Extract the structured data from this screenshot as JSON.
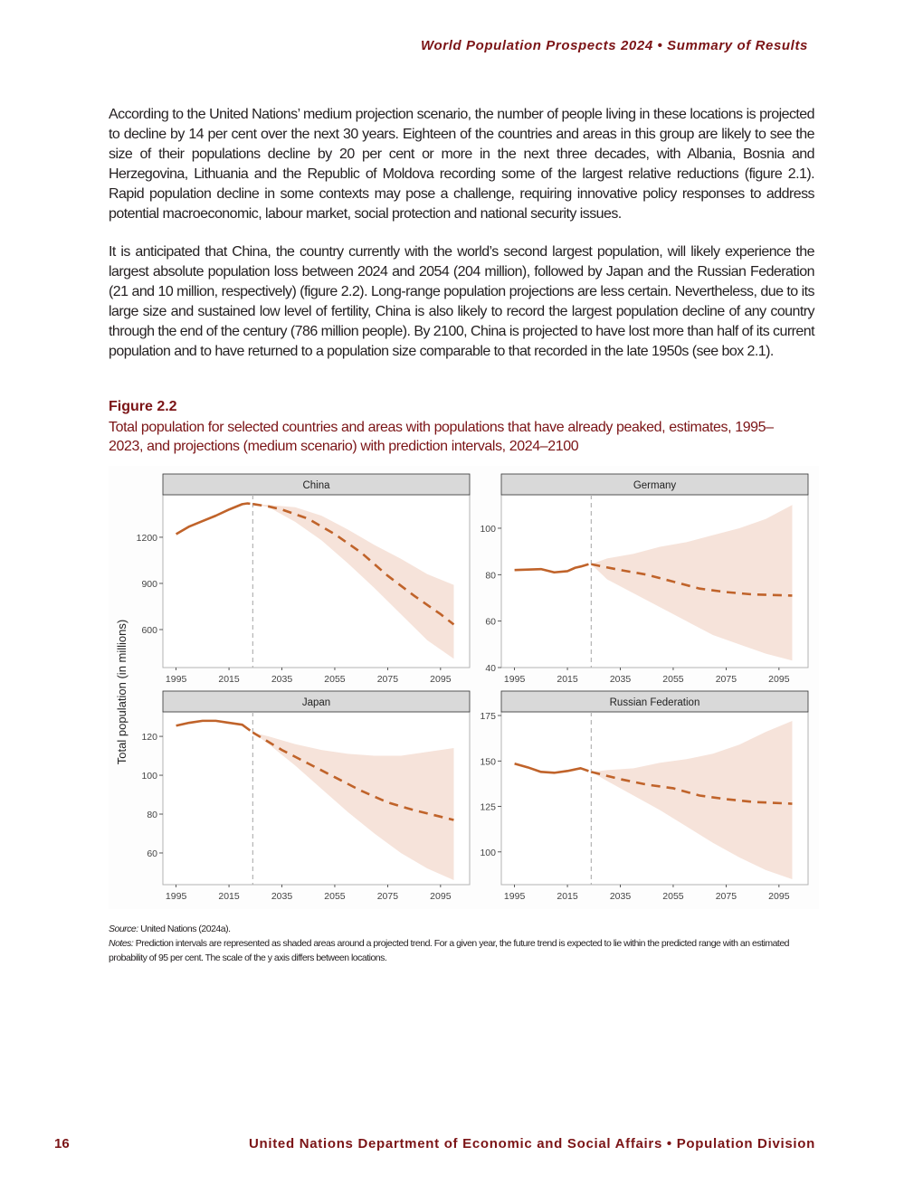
{
  "header": {
    "running_title": "World Population Prospects 2024 • Summary of Results"
  },
  "body": {
    "paragraphs": [
      "According to the United Nations’ medium projection scenario, the number of people living in these locations is projected to decline by 14 per cent over the next 30 years. Eighteen of the countries and areas in this group are likely to see the size of their populations decline by 20 per cent or more in the next three decades, with Albania, Bosnia and Herzegovina, Lithuania and the Republic of Moldova recording some of the largest relative reductions (figure 2.1). Rapid population decline in some contexts may pose a challenge, requiring innovative policy responses to address potential macroeconomic, labour market, social protection and national security issues.",
      "It is anticipated that China, the country currently with the world’s second largest population, will likely experience the largest absolute population loss between 2024 and 2054 (204 million), followed by Japan and the Russian Federation (21 and 10 million, respectively) (figure 2.2). Long-range population projections are less certain. Nevertheless, due to its large size and sustained low level of fertility, China is also likely to record the largest population decline of any country through the end of the century (786 million people). By 2100, China is projected to have lost more than half of its current population and to have returned to a population size comparable to that recorded in the late 1950s (see box 2.1)."
    ]
  },
  "figure": {
    "label": "Figure 2.2",
    "title": "Total population for selected countries and areas with populations that have already peaked, estimates, 1995–2023, and projections (medium scenario) with prediction intervals, 2024–2100",
    "source_label": "Source:",
    "source_text": " United Nations (2024a).",
    "notes_label": "Notes:",
    "notes_text": " Prediction intervals are represented as shaded areas around a projected trend. For a given year, the future trend is expected to lie within the predicted range with an estimated probability of 95 per cent. The scale of the y axis differs between locations."
  },
  "chart_data": {
    "type": "line",
    "ylabel": "Total population (in millions)",
    "xlabel": "",
    "x_ticks": [
      1995,
      2015,
      2035,
      2055,
      2075,
      2095
    ],
    "xlim": [
      1990,
      2106
    ],
    "projection_start": 2024,
    "grid": false,
    "colors": {
      "line": "#c0632a",
      "band": "#f6e3da",
      "header_bg": "#d9d9d9",
      "divider": "#b3b3b3"
    },
    "panels": [
      {
        "name": "China",
        "ylim": [
          353,
          1476
        ],
        "y_ticks": [
          600,
          900,
          1200
        ],
        "estimates": {
          "x": [
            1995,
            2000,
            2005,
            2010,
            2015,
            2020,
            2022,
            2023
          ],
          "y": [
            1220,
            1270,
            1305,
            1340,
            1380,
            1415,
            1420,
            1418
          ]
        },
        "projection": {
          "x": [
            2024,
            2030,
            2035,
            2045,
            2055,
            2065,
            2075,
            2085,
            2095,
            2100
          ],
          "y": [
            1416,
            1400,
            1380,
            1320,
            1220,
            1100,
            950,
            820,
            700,
            633
          ]
        },
        "interval": {
          "x": [
            2024,
            2030,
            2040,
            2050,
            2060,
            2070,
            2080,
            2090,
            2100
          ],
          "lower": [
            1416,
            1395,
            1300,
            1180,
            1030,
            870,
            700,
            530,
            410
          ],
          "upper": [
            1416,
            1410,
            1395,
            1340,
            1250,
            1150,
            1060,
            960,
            890
          ]
        }
      },
      {
        "name": "Germany",
        "ylim": [
          40,
          114.4
        ],
        "y_ticks": [
          40,
          60,
          80,
          100
        ],
        "estimates": {
          "x": [
            1995,
            2000,
            2005,
            2010,
            2015,
            2018,
            2020,
            2023
          ],
          "y": [
            82,
            82.2,
            82.4,
            81,
            81.5,
            83,
            83.5,
            84.5
          ]
        },
        "projection": {
          "x": [
            2024,
            2035,
            2045,
            2055,
            2065,
            2075,
            2085,
            2100
          ],
          "y": [
            84.5,
            82,
            80,
            77,
            74,
            72.5,
            71.5,
            71
          ]
        },
        "interval": {
          "x": [
            2024,
            2030,
            2040,
            2050,
            2060,
            2070,
            2080,
            2090,
            2100
          ],
          "lower": [
            84.5,
            78,
            72,
            66,
            60,
            54,
            50,
            46,
            43
          ],
          "upper": [
            84.5,
            87,
            89,
            92,
            94,
            97,
            100,
            104,
            110
          ]
        }
      },
      {
        "name": "Japan",
        "ylim": [
          43.7,
          132.6
        ],
        "y_ticks": [
          60,
          80,
          100,
          120
        ],
        "estimates": {
          "x": [
            1995,
            2000,
            2005,
            2010,
            2015,
            2020,
            2023
          ],
          "y": [
            125.5,
            127,
            128,
            128,
            127,
            126,
            123
          ]
        },
        "projection": {
          "x": [
            2024,
            2035,
            2045,
            2055,
            2065,
            2075,
            2085,
            2100
          ],
          "y": [
            122,
            113,
            106,
            99,
            92,
            86,
            82,
            77
          ]
        },
        "interval": {
          "x": [
            2024,
            2030,
            2040,
            2050,
            2060,
            2070,
            2080,
            2090,
            2100
          ],
          "lower": [
            122,
            116,
            105,
            93,
            81,
            70,
            60,
            52,
            46
          ],
          "upper": [
            122,
            120,
            116,
            113,
            111,
            110,
            110,
            112,
            114
          ]
        }
      },
      {
        "name": "Russian Federation",
        "ylim": [
          82,
          177
        ],
        "y_ticks": [
          100,
          125,
          150,
          175
        ],
        "estimates": {
          "x": [
            1995,
            2000,
            2005,
            2010,
            2015,
            2020,
            2023
          ],
          "y": [
            148.5,
            146.5,
            144,
            143.5,
            144.5,
            146,
            144.5
          ]
        },
        "projection": {
          "x": [
            2024,
            2035,
            2045,
            2055,
            2065,
            2075,
            2085,
            2100
          ],
          "y": [
            144,
            140,
            137,
            135,
            131,
            129,
            127.5,
            126.5
          ]
        },
        "interval": {
          "x": [
            2024,
            2030,
            2040,
            2050,
            2060,
            2070,
            2080,
            2090,
            2100
          ],
          "lower": [
            144,
            139,
            131,
            123,
            114,
            105,
            97,
            90,
            85
          ],
          "upper": [
            144,
            145,
            146,
            149,
            151,
            154,
            159,
            166,
            172
          ]
        }
      }
    ]
  },
  "footer": {
    "page_number": "16",
    "text": "United Nations Department of Economic and Social Affairs • Population Division"
  }
}
